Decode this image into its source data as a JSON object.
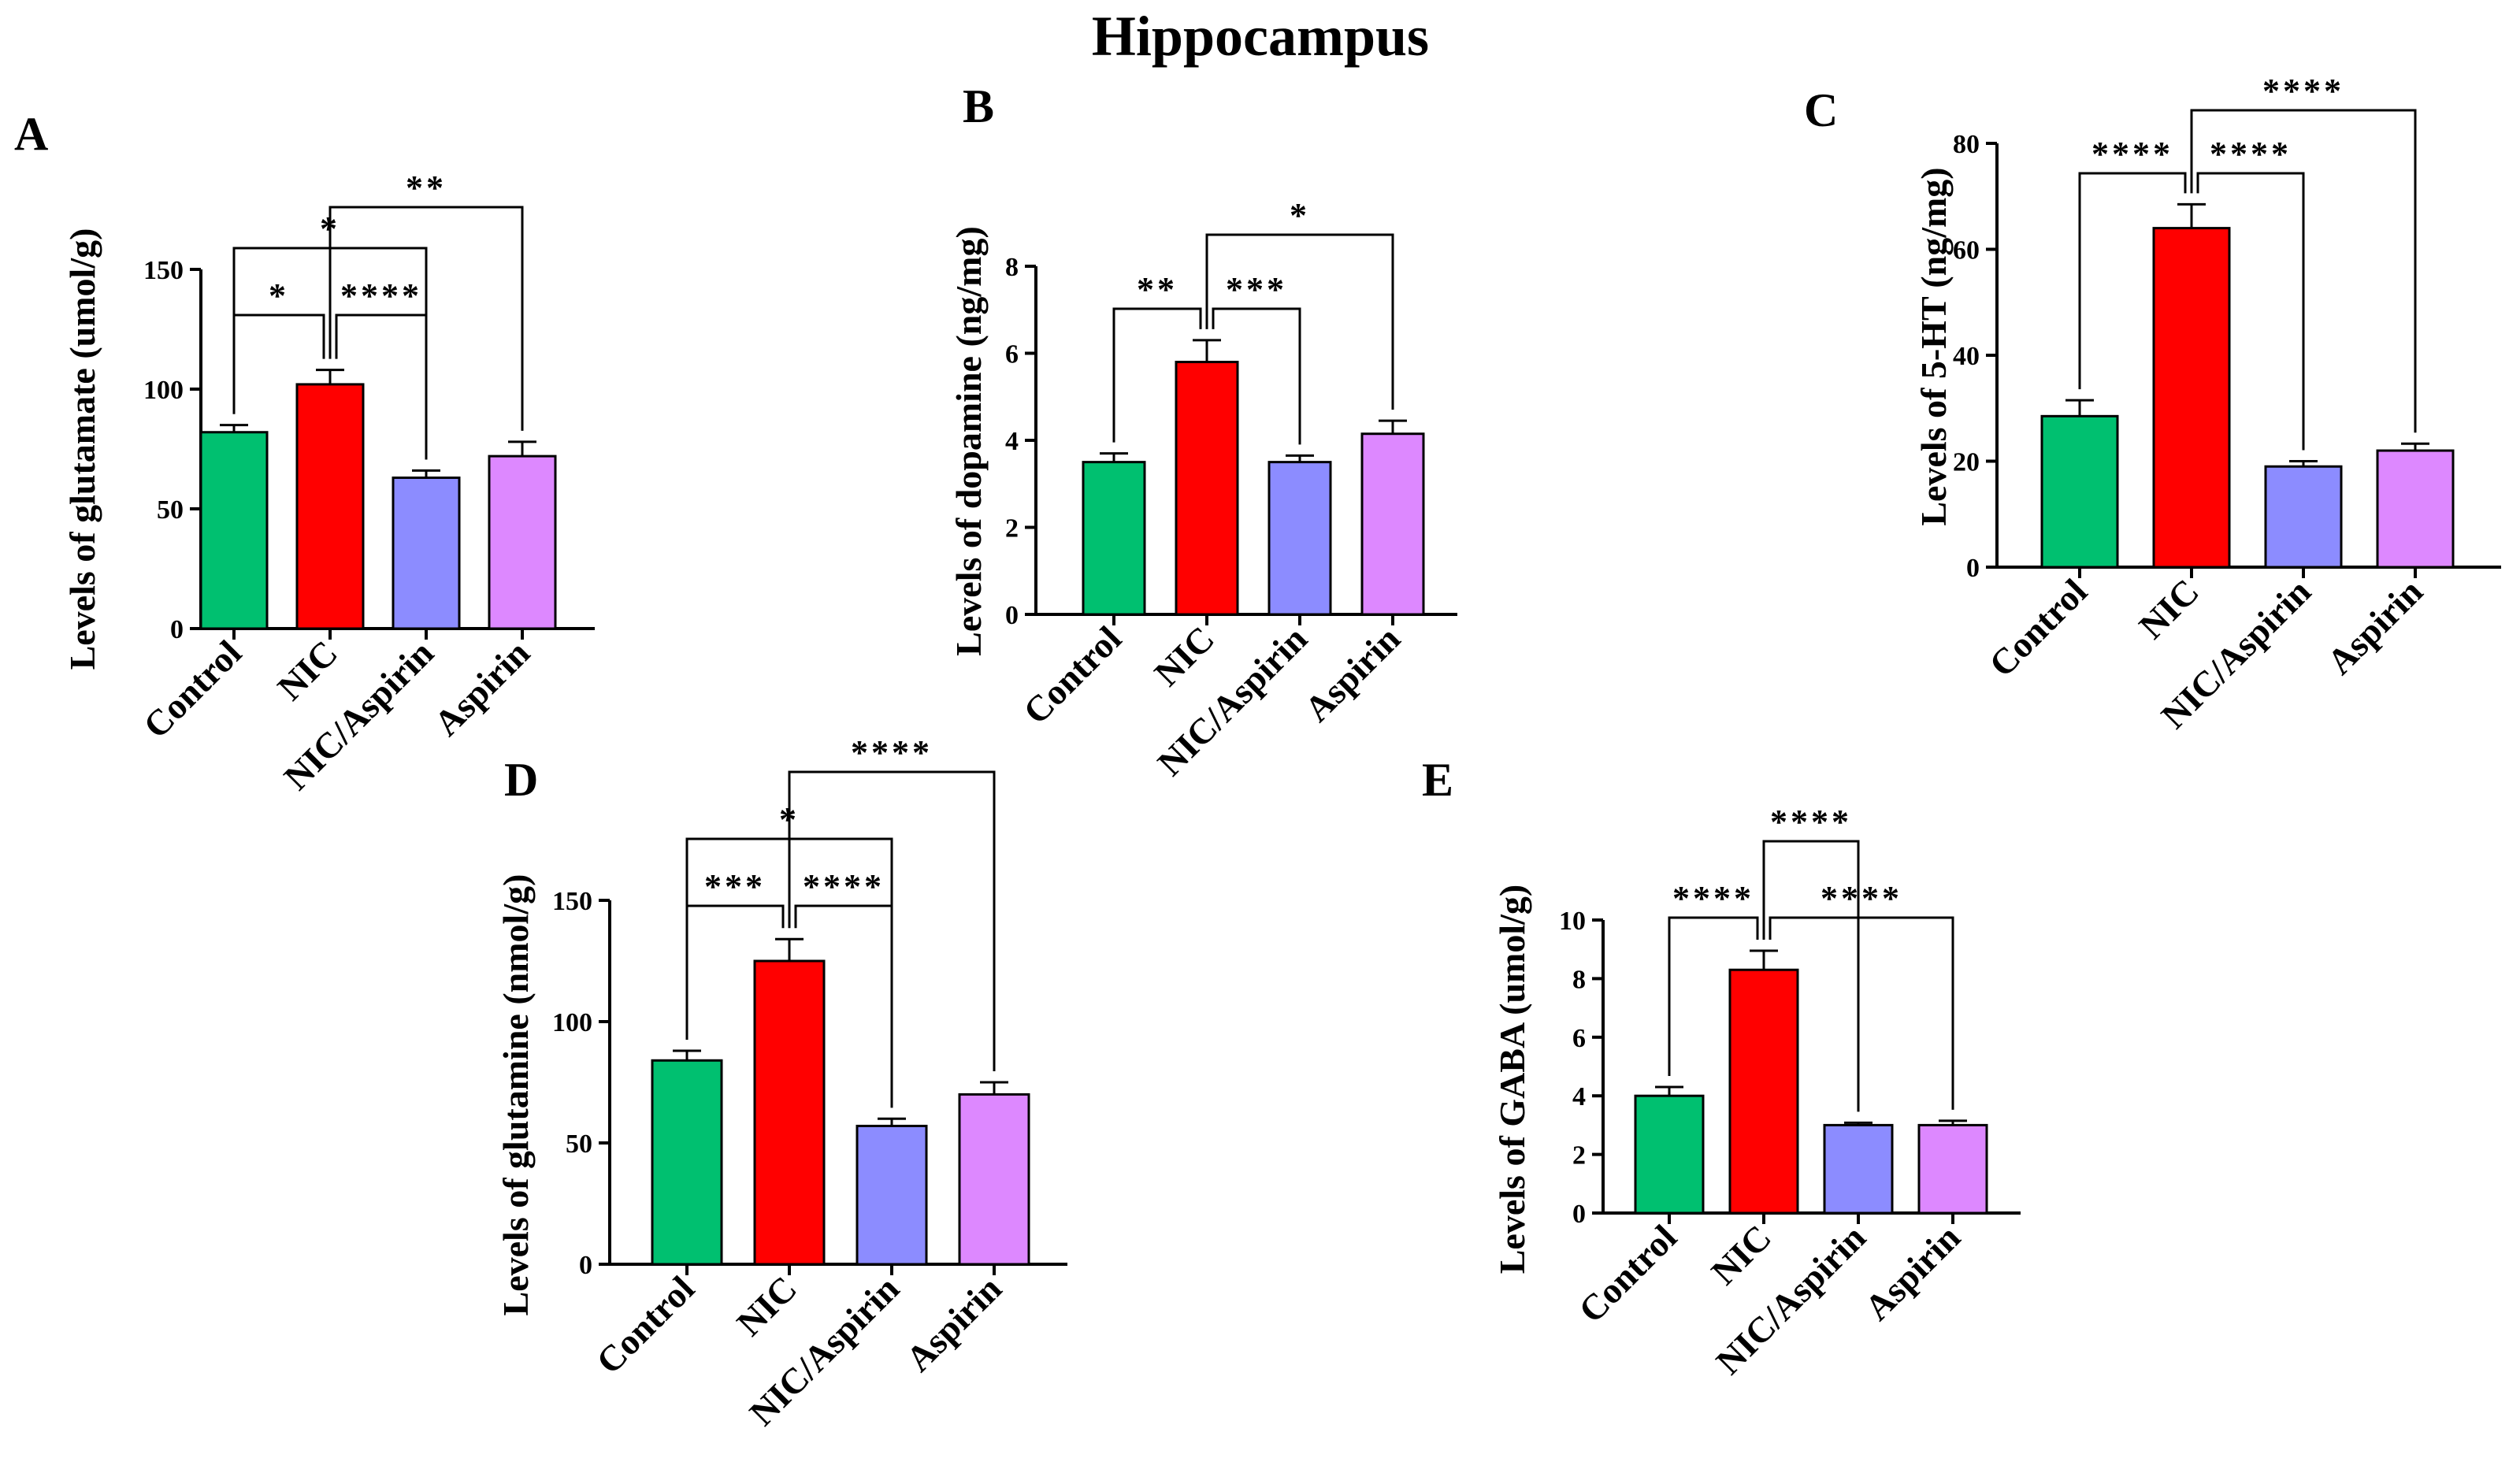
{
  "figure_title": "Hippocampus",
  "colors": {
    "Control": "#00c070",
    "NIC": "#ff0000",
    "NIC/Aspirin": "#8c8cff",
    "Aspirin": "#dd88ff"
  },
  "chart_data": [
    {
      "panel": "A",
      "type": "bar",
      "title": "",
      "ylabel": "Levels of glutamate (umol/g)",
      "categories": [
        "Control",
        "NIC",
        "NIC/Aspirin",
        "Aspirin"
      ],
      "values": [
        82,
        102,
        63,
        72
      ],
      "errors": [
        3,
        6,
        3,
        6
      ],
      "ylim": [
        0,
        150
      ],
      "yticks": [
        0,
        50,
        100,
        150
      ],
      "significance": [
        {
          "from": 0,
          "to": 1,
          "label": "*"
        },
        {
          "from": 1,
          "to": 2,
          "label": "****"
        },
        {
          "from": 0,
          "to": 2,
          "label": "*"
        },
        {
          "from": 1,
          "to": 3,
          "label": "**"
        }
      ]
    },
    {
      "panel": "B",
      "type": "bar",
      "title": "",
      "ylabel": "Levels of dopamine (ng/mg)",
      "categories": [
        "Control",
        "NIC",
        "NIC/Aspirin",
        "Aspirin"
      ],
      "values": [
        3.5,
        5.8,
        3.5,
        4.15
      ],
      "errors": [
        0.2,
        0.5,
        0.15,
        0.3
      ],
      "ylim": [
        0,
        8
      ],
      "yticks": [
        0,
        2,
        4,
        6,
        8
      ],
      "significance": [
        {
          "from": 0,
          "to": 1,
          "label": "**"
        },
        {
          "from": 1,
          "to": 2,
          "label": "***"
        },
        {
          "from": 1,
          "to": 3,
          "label": "*"
        }
      ]
    },
    {
      "panel": "C",
      "type": "bar",
      "title": "",
      "ylabel": "Levels of 5-HT (ng/mg)",
      "categories": [
        "Control",
        "NIC",
        "NIC/Aspirin",
        "Aspirin"
      ],
      "values": [
        28.5,
        64,
        19,
        22
      ],
      "errors": [
        3,
        4.5,
        1,
        1.3
      ],
      "ylim": [
        0,
        80
      ],
      "yticks": [
        0,
        20,
        40,
        60,
        80
      ],
      "significance": [
        {
          "from": 0,
          "to": 1,
          "label": "****"
        },
        {
          "from": 1,
          "to": 2,
          "label": "****"
        },
        {
          "from": 1,
          "to": 3,
          "label": "****"
        }
      ]
    },
    {
      "panel": "D",
      "type": "bar",
      "title": "",
      "ylabel": "Levels of glutamine (nmol/g)",
      "categories": [
        "Control",
        "NIC",
        "NIC/Aspirin",
        "Aspirin"
      ],
      "values": [
        84,
        125,
        57,
        70
      ],
      "errors": [
        4,
        9,
        3,
        5
      ],
      "ylim": [
        0,
        150
      ],
      "yticks": [
        0,
        50,
        100,
        150
      ],
      "significance": [
        {
          "from": 0,
          "to": 1,
          "label": "***"
        },
        {
          "from": 1,
          "to": 2,
          "label": "****"
        },
        {
          "from": 0,
          "to": 2,
          "label": "*"
        },
        {
          "from": 1,
          "to": 3,
          "label": "****"
        }
      ]
    },
    {
      "panel": "E",
      "type": "bar",
      "title": "",
      "ylabel": "Levels of GABA (umol/g)",
      "categories": [
        "Control",
        "NIC",
        "NIC/Aspirin",
        "Aspirin"
      ],
      "values": [
        4.0,
        8.3,
        3.0,
        3.0
      ],
      "errors": [
        0.3,
        0.65,
        0.08,
        0.15
      ],
      "ylim": [
        0,
        10
      ],
      "yticks": [
        0,
        2,
        4,
        6,
        8,
        10
      ],
      "significance": [
        {
          "from": 0,
          "to": 1,
          "label": "****"
        },
        {
          "from": 1,
          "to": 3,
          "label": "****"
        },
        {
          "from": 1,
          "to": 2,
          "label": "****"
        }
      ]
    }
  ]
}
